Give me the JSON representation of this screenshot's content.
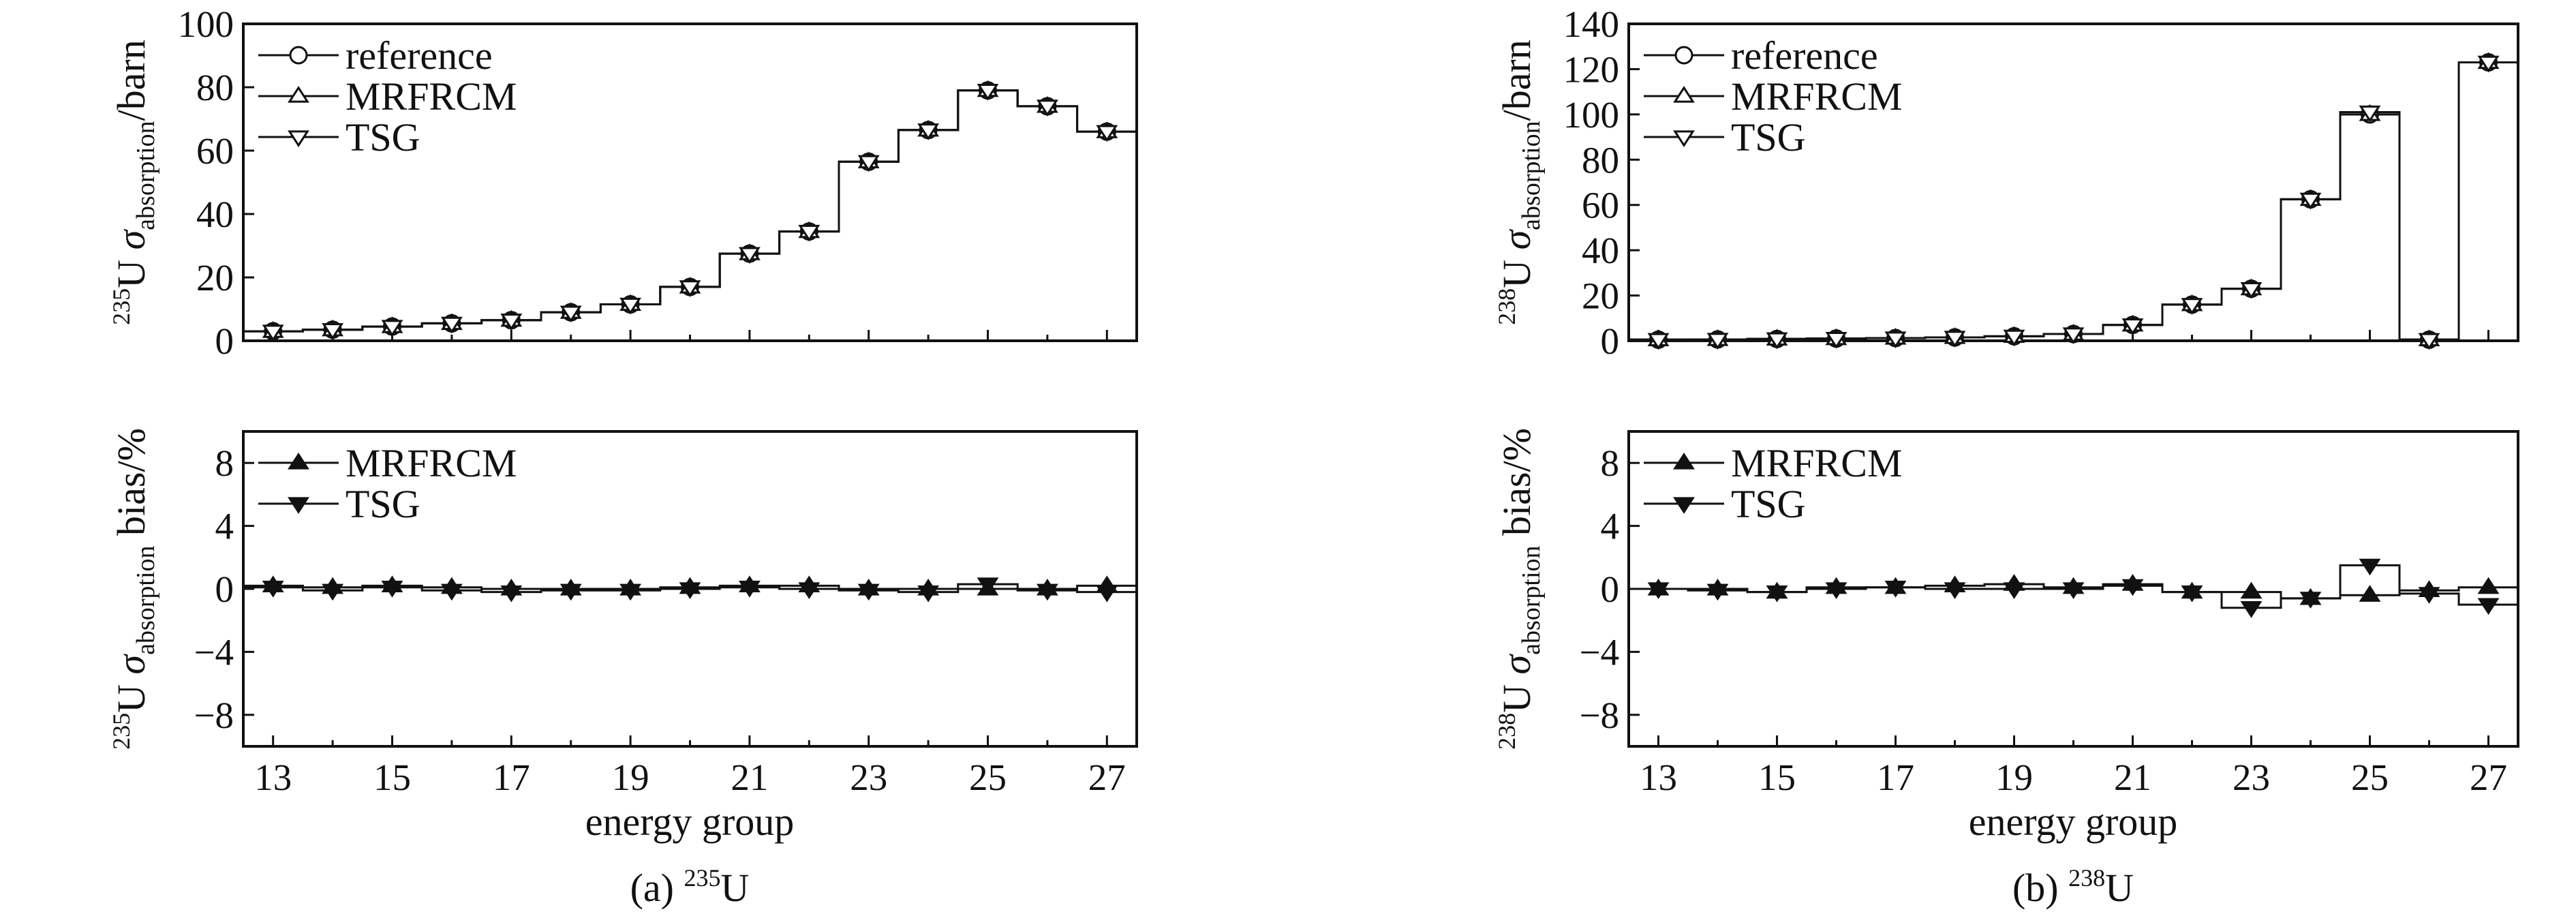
{
  "colors": {
    "line": "#111111",
    "background": "#ffffff"
  },
  "chart_data": [
    {
      "type": "line",
      "caption": {
        "prefix": "(a) ",
        "isotope_mass": "235",
        "isotope_symbol": "U"
      },
      "xlabel": "energy group",
      "x_ticks": [
        "13",
        "15",
        "17",
        "19",
        "21",
        "23",
        "25",
        "27"
      ],
      "xlim": [
        12.5,
        27.5
      ],
      "panels": [
        {
          "name": "cross-section",
          "ylabel": {
            "mass": "235",
            "symbol": "U ",
            "sigma": "σ",
            "subscript": "absorption",
            "unit": "/barn"
          },
          "ylim": [
            0,
            100
          ],
          "y_ticks": [
            "0",
            "20",
            "40",
            "60",
            "80",
            "100"
          ],
          "legend": {
            "placement": "top-left"
          },
          "x": [
            13,
            14,
            15,
            16,
            17,
            18,
            19,
            20,
            21,
            22,
            23,
            24,
            25,
            26,
            27
          ],
          "series": [
            {
              "name": "reference",
              "marker": "circle",
              "values": [
                3,
                3.5,
                4.5,
                5.5,
                6.5,
                9,
                11.5,
                17,
                27.5,
                34.5,
                56.5,
                66.5,
                79,
                74,
                66
              ]
            },
            {
              "name": "MRFRCM",
              "marker": "triangle-up",
              "values": [
                3,
                3.5,
                4.5,
                5.5,
                6.5,
                9,
                11.5,
                17,
                27.5,
                34.5,
                56.5,
                66.5,
                79,
                74,
                66
              ]
            },
            {
              "name": "TSG",
              "marker": "triangle-down",
              "values": [
                3,
                3.5,
                4.5,
                5.5,
                6.5,
                9,
                11.5,
                17,
                27.5,
                34.5,
                56.5,
                66.5,
                79,
                74,
                66
              ]
            }
          ]
        },
        {
          "name": "bias",
          "ylabel": {
            "mass": "235",
            "symbol": "U ",
            "sigma": "σ",
            "subscript": "absorption",
            "unit": " bias/%"
          },
          "ylim": [
            -10,
            10
          ],
          "y_ticks": [
            "−8",
            "−4",
            "0",
            "4",
            "8"
          ],
          "y_tick_values": [
            -8,
            -4,
            0,
            4,
            8
          ],
          "legend": {
            "placement": "top-left"
          },
          "x": [
            13,
            14,
            15,
            16,
            17,
            18,
            19,
            20,
            21,
            22,
            23,
            24,
            25,
            26,
            27
          ],
          "series": [
            {
              "name": "MRFRCM",
              "marker": "triangle-up-filled",
              "values": [
                0.2,
                0.1,
                0.2,
                0.1,
                0,
                0,
                0,
                0.1,
                0.2,
                0.2,
                0,
                0,
                0,
                0,
                0.2
              ]
            },
            {
              "name": "TSG",
              "marker": "triangle-down-filled",
              "values": [
                0.1,
                -0.1,
                0.1,
                -0.1,
                -0.2,
                -0.1,
                -0.1,
                0,
                0.1,
                0,
                -0.1,
                -0.2,
                0.3,
                -0.1,
                -0.2
              ]
            }
          ]
        }
      ]
    },
    {
      "type": "line",
      "caption": {
        "prefix": "(b) ",
        "isotope_mass": "238",
        "isotope_symbol": "U"
      },
      "xlabel": "energy group",
      "x_ticks": [
        "13",
        "15",
        "17",
        "19",
        "21",
        "23",
        "25",
        "27"
      ],
      "xlim": [
        12.5,
        27.5
      ],
      "panels": [
        {
          "name": "cross-section",
          "ylabel": {
            "mass": "238",
            "symbol": "U ",
            "sigma": "σ",
            "subscript": "absorption",
            "unit": "/barn"
          },
          "ylim": [
            0,
            140
          ],
          "y_ticks": [
            "0",
            "20",
            "40",
            "60",
            "80",
            "100",
            "120",
            "140"
          ],
          "legend": {
            "placement": "top-left"
          },
          "x": [
            13,
            14,
            15,
            16,
            17,
            18,
            19,
            20,
            21,
            22,
            23,
            24,
            25,
            26,
            27
          ],
          "series": [
            {
              "name": "reference",
              "marker": "circle",
              "values": [
                0.5,
                0.6,
                0.8,
                1,
                1.2,
                1.5,
                2,
                3,
                7,
                16,
                23,
                62.5,
                100,
                0.5,
                123
              ]
            },
            {
              "name": "MRFRCM",
              "marker": "triangle-up",
              "values": [
                0.5,
                0.6,
                0.8,
                1,
                1.2,
                1.5,
                2,
                3,
                7,
                16,
                23,
                62.5,
                100,
                0.5,
                123
              ]
            },
            {
              "name": "TSG",
              "marker": "triangle-down",
              "values": [
                0.5,
                0.6,
                0.8,
                1,
                1.2,
                1.5,
                2,
                3,
                7,
                16,
                23,
                62.5,
                101,
                0.5,
                123
              ]
            }
          ]
        },
        {
          "name": "bias",
          "ylabel": {
            "mass": "238",
            "symbol": "U ",
            "sigma": "σ",
            "subscript": "absorption",
            "unit": " bias/%"
          },
          "ylim": [
            -10,
            10
          ],
          "y_ticks": [
            "−8",
            "−4",
            "0",
            "4",
            "8"
          ],
          "y_tick_values": [
            -8,
            -4,
            0,
            4,
            8
          ],
          "legend": {
            "placement": "top-left"
          },
          "x": [
            13,
            14,
            15,
            16,
            17,
            18,
            19,
            20,
            21,
            22,
            23,
            24,
            25,
            26,
            27
          ],
          "series": [
            {
              "name": "MRFRCM",
              "marker": "triangle-up-filled",
              "values": [
                0,
                0,
                -0.2,
                0.1,
                0.1,
                0.2,
                0.3,
                0.1,
                0.3,
                -0.2,
                -0.2,
                -0.6,
                -0.4,
                -0.1,
                0.1
              ]
            },
            {
              "name": "TSG",
              "marker": "triangle-down-filled",
              "values": [
                0,
                -0.1,
                -0.2,
                0,
                0.1,
                0,
                0,
                0,
                0.2,
                -0.2,
                -1.2,
                -0.6,
                1.5,
                -0.3,
                -1
              ]
            }
          ]
        }
      ]
    }
  ]
}
